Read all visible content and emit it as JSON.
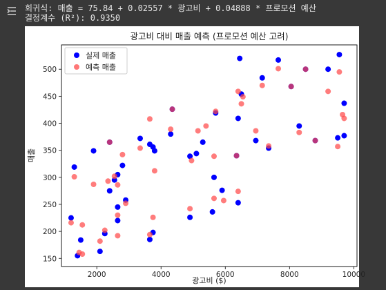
{
  "output": {
    "line1": "회귀식: 매출 = 75.84 + 0.02557 * 광고비 + 0.04888 * 프로모션 예산",
    "line2": "결정계수 (R²): 0.9350"
  },
  "icons": {
    "cell_output": "output-collapse-icon"
  },
  "colors": {
    "actual": "#0000ff",
    "predicted": "#ff4a4a",
    "overlap": "#7a0080"
  },
  "chart_data": {
    "type": "scatter",
    "title": "광고비 대비 매출 예측 (프로모션 예산 고려)",
    "xlabel": "광고비 ($)",
    "ylabel": "매출",
    "xlim": [
      900,
      10100
    ],
    "ylim": [
      135,
      545
    ],
    "xticks": [
      2000,
      4000,
      6000,
      8000,
      10000
    ],
    "yticks": [
      150,
      200,
      250,
      300,
      350,
      400,
      450,
      500
    ],
    "xtick_labels": [
      "2000",
      "4000",
      "6000",
      "8000",
      "10000"
    ],
    "ytick_labels": [
      "150",
      "200",
      "250",
      "300",
      "350",
      "400",
      "450",
      "500"
    ],
    "grid": false,
    "legend_position": "top-left",
    "series": [
      {
        "name": "실제 매출",
        "color": "#0000ff",
        "points": [
          [
            1200,
            225
          ],
          [
            1300,
            319
          ],
          [
            1400,
            155
          ],
          [
            1500,
            184
          ],
          [
            1900,
            349
          ],
          [
            2100,
            163
          ],
          [
            2250,
            196
          ],
          [
            2400,
            275
          ],
          [
            2400,
            365
          ],
          [
            2550,
            295
          ],
          [
            2650,
            305
          ],
          [
            2650,
            245
          ],
          [
            2650,
            220
          ],
          [
            2800,
            322
          ],
          [
            2900,
            258
          ],
          [
            3350,
            372
          ],
          [
            3650,
            185
          ],
          [
            3650,
            361
          ],
          [
            3750,
            356
          ],
          [
            3750,
            198
          ],
          [
            3800,
            349
          ],
          [
            4300,
            380
          ],
          [
            4350,
            426
          ],
          [
            4900,
            339
          ],
          [
            4900,
            226
          ],
          [
            5100,
            344
          ],
          [
            5300,
            365
          ],
          [
            5600,
            236
          ],
          [
            5650,
            300
          ],
          [
            5700,
            419
          ],
          [
            5900,
            276
          ],
          [
            6350,
            340
          ],
          [
            6400,
            253
          ],
          [
            6400,
            409
          ],
          [
            6450,
            520
          ],
          [
            6500,
            454
          ],
          [
            6950,
            368
          ],
          [
            7150,
            484
          ],
          [
            7350,
            354
          ],
          [
            7650,
            517
          ],
          [
            8050,
            468
          ],
          [
            8300,
            395
          ],
          [
            8500,
            500
          ],
          [
            8800,
            368
          ],
          [
            9200,
            500
          ],
          [
            9500,
            373
          ],
          [
            9550,
            527
          ],
          [
            9700,
            377
          ],
          [
            9700,
            437
          ]
        ]
      },
      {
        "name": "예측 매출",
        "color": "#ff4a4a",
        "points": [
          [
            1200,
            216
          ],
          [
            1300,
            301
          ],
          [
            1450,
            161
          ],
          [
            1550,
            158
          ],
          [
            1550,
            212
          ],
          [
            1900,
            287
          ],
          [
            2100,
            182
          ],
          [
            2250,
            202
          ],
          [
            2350,
            293
          ],
          [
            2400,
            365
          ],
          [
            2550,
            302
          ],
          [
            2650,
            192
          ],
          [
            2650,
            286
          ],
          [
            2650,
            230
          ],
          [
            2800,
            342
          ],
          [
            2900,
            252
          ],
          [
            3350,
            354
          ],
          [
            3650,
            194
          ],
          [
            3650,
            408
          ],
          [
            3750,
            226
          ],
          [
            3800,
            312
          ],
          [
            4300,
            389
          ],
          [
            4350,
            426
          ],
          [
            4900,
            242
          ],
          [
            4950,
            331
          ],
          [
            5150,
            386
          ],
          [
            5400,
            395
          ],
          [
            5650,
            261
          ],
          [
            5650,
            339
          ],
          [
            5700,
            422
          ],
          [
            5950,
            257
          ],
          [
            6350,
            340
          ],
          [
            6400,
            274
          ],
          [
            6400,
            459
          ],
          [
            6500,
            436
          ],
          [
            6550,
            449
          ],
          [
            6950,
            386
          ],
          [
            7150,
            470
          ],
          [
            7350,
            358
          ],
          [
            7650,
            501
          ],
          [
            8050,
            468
          ],
          [
            8300,
            383
          ],
          [
            8500,
            500
          ],
          [
            8800,
            368
          ],
          [
            9200,
            459
          ],
          [
            9500,
            357
          ],
          [
            9550,
            495
          ],
          [
            9650,
            416
          ],
          [
            9700,
            409
          ]
        ]
      }
    ]
  }
}
